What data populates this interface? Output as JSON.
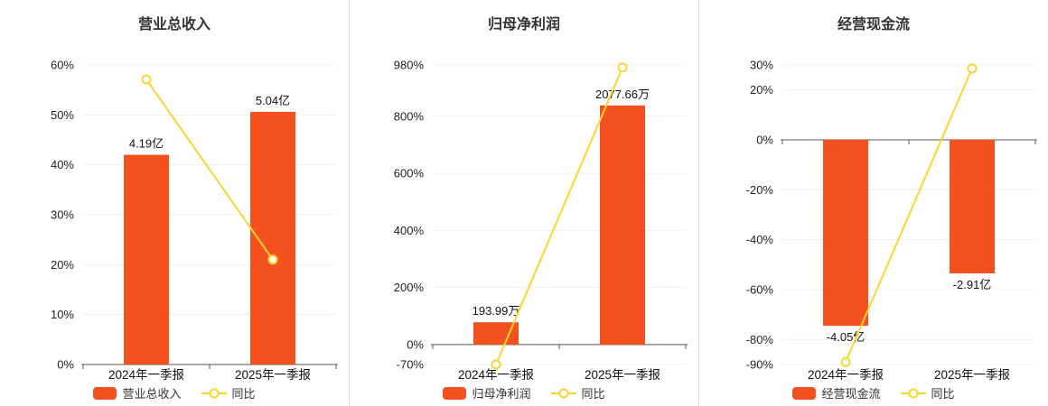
{
  "colors": {
    "bar": "#f4511e",
    "line": "#fcd530",
    "axis": "#555555",
    "grid": "#f0f0f0",
    "text": "#222222",
    "title": "#333333",
    "divider": "#dddddd",
    "marker_fill": "#ffffff",
    "background": "#ffffff"
  },
  "chart_data": [
    {
      "type": "bar",
      "title": "营业总收入",
      "categories": [
        "2024年一季报",
        "2025年一季报"
      ],
      "ylim": [
        0,
        60
      ],
      "yticks": [
        0,
        10,
        20,
        30,
        40,
        50,
        60
      ],
      "zero": 0,
      "grid": true,
      "legend_position": "bottom",
      "series": [
        {
          "name": "营业总收入",
          "kind": "bar",
          "labels": [
            "4.19亿",
            "5.04亿"
          ],
          "values_axis": [
            42,
            50.6
          ]
        },
        {
          "name": "同比",
          "kind": "line",
          "values_pct": [
            57.1,
            21.0
          ]
        }
      ],
      "legend": {
        "bar": "营业总收入",
        "line": "同比"
      }
    },
    {
      "type": "bar",
      "title": "归母净利润",
      "categories": [
        "2024年一季报",
        "2025年一季报"
      ],
      "ylim": [
        -70,
        980
      ],
      "yticks": [
        -70,
        0,
        200,
        400,
        600,
        800,
        980
      ],
      "zero": 0,
      "grid": true,
      "legend_position": "bottom",
      "series": [
        {
          "name": "归母净利润",
          "kind": "bar",
          "labels": [
            "193.99万",
            "2077.66万"
          ],
          "values_axis": [
            78,
            838
          ]
        },
        {
          "name": "同比",
          "kind": "line",
          "values_pct": [
            -70,
            971
          ]
        }
      ],
      "legend": {
        "bar": "归母净利润",
        "line": "同比"
      }
    },
    {
      "type": "bar",
      "title": "经营现金流",
      "categories": [
        "2024年一季报",
        "2025年一季报"
      ],
      "ylim": [
        -90,
        30
      ],
      "yticks": [
        -90,
        -80,
        -60,
        -40,
        -20,
        0,
        20,
        30
      ],
      "zero": 0,
      "grid": true,
      "legend_position": "bottom",
      "series": [
        {
          "name": "经营现金流",
          "kind": "bar",
          "labels": [
            "-4.05亿",
            "-2.91亿"
          ],
          "values_axis": [
            -74.5,
            -53.5
          ]
        },
        {
          "name": "同比",
          "kind": "line",
          "values_pct": [
            -89,
            28.6
          ]
        }
      ],
      "legend": {
        "bar": "经营现金流",
        "line": "同比"
      }
    }
  ]
}
